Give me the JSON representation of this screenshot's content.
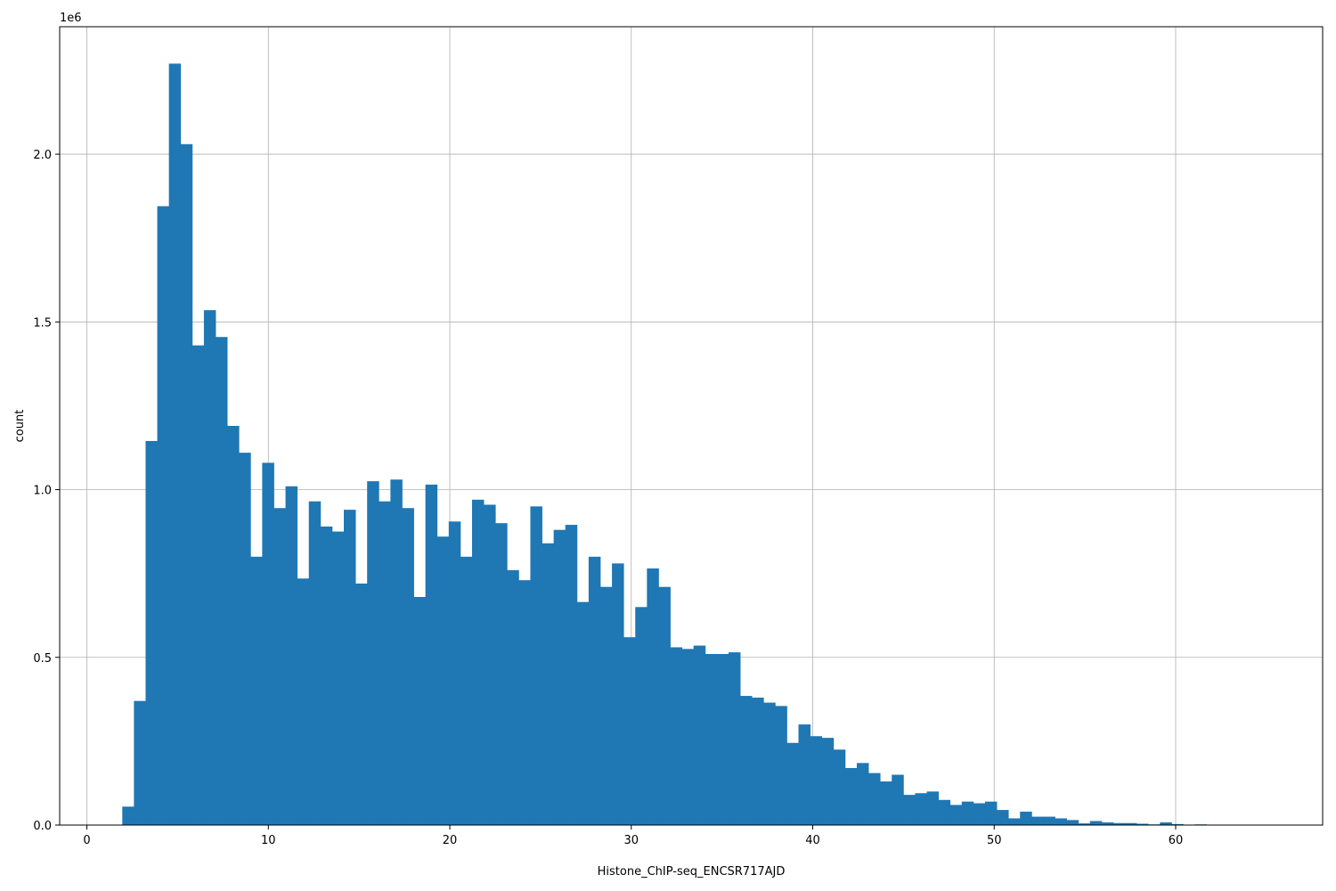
{
  "chart_data": {
    "type": "bar",
    "histogram": true,
    "xlabel": "Histone_ChIP-seq_ENCSR717AJD",
    "ylabel": "count",
    "y_multiplier_label": "1e6",
    "xlim": [
      -1.5,
      68.1
    ],
    "ylim": [
      0,
      2.38
    ],
    "grid": true,
    "bar_color": "#1f77b4",
    "grid_color": "#b0b0b0",
    "x_ticks": [
      0,
      10,
      20,
      30,
      40,
      50,
      60
    ],
    "x_tick_labels": [
      "0",
      "10",
      "20",
      "30",
      "40",
      "50",
      "60"
    ],
    "y_ticks": [
      0,
      0.5,
      1.0,
      1.5,
      2.0
    ],
    "y_tick_labels": [
      "0.0",
      "0.5",
      "1.0",
      "1.5",
      "2.0"
    ],
    "bin_start": 1.95,
    "bin_width": 0.6425,
    "values": [
      0.055,
      0.37,
      1.145,
      1.845,
      2.27,
      2.03,
      1.43,
      1.535,
      1.455,
      1.19,
      1.11,
      0.8,
      1.08,
      0.945,
      1.01,
      0.735,
      0.965,
      0.89,
      0.875,
      0.94,
      0.72,
      1.025,
      0.965,
      1.03,
      0.945,
      0.68,
      1.015,
      0.86,
      0.905,
      0.8,
      0.97,
      0.955,
      0.9,
      0.76,
      0.73,
      0.95,
      0.84,
      0.88,
      0.895,
      0.665,
      0.8,
      0.71,
      0.78,
      0.56,
      0.65,
      0.765,
      0.71,
      0.53,
      0.525,
      0.535,
      0.51,
      0.51,
      0.515,
      0.385,
      0.38,
      0.365,
      0.355,
      0.245,
      0.3,
      0.265,
      0.26,
      0.225,
      0.17,
      0.185,
      0.155,
      0.13,
      0.15,
      0.09,
      0.095,
      0.1,
      0.075,
      0.06,
      0.07,
      0.065,
      0.07,
      0.045,
      0.02,
      0.04,
      0.025,
      0.025,
      0.02,
      0.015,
      0.005,
      0.012,
      0.008,
      0.006,
      0.006,
      0.004,
      0.002,
      0.008,
      0.003,
      0.001,
      0.002,
      0.001,
      0.001,
      0.001,
      0.001,
      0.0005,
      0.0005,
      0.0005,
      0.0003,
      0.0002
    ]
  }
}
